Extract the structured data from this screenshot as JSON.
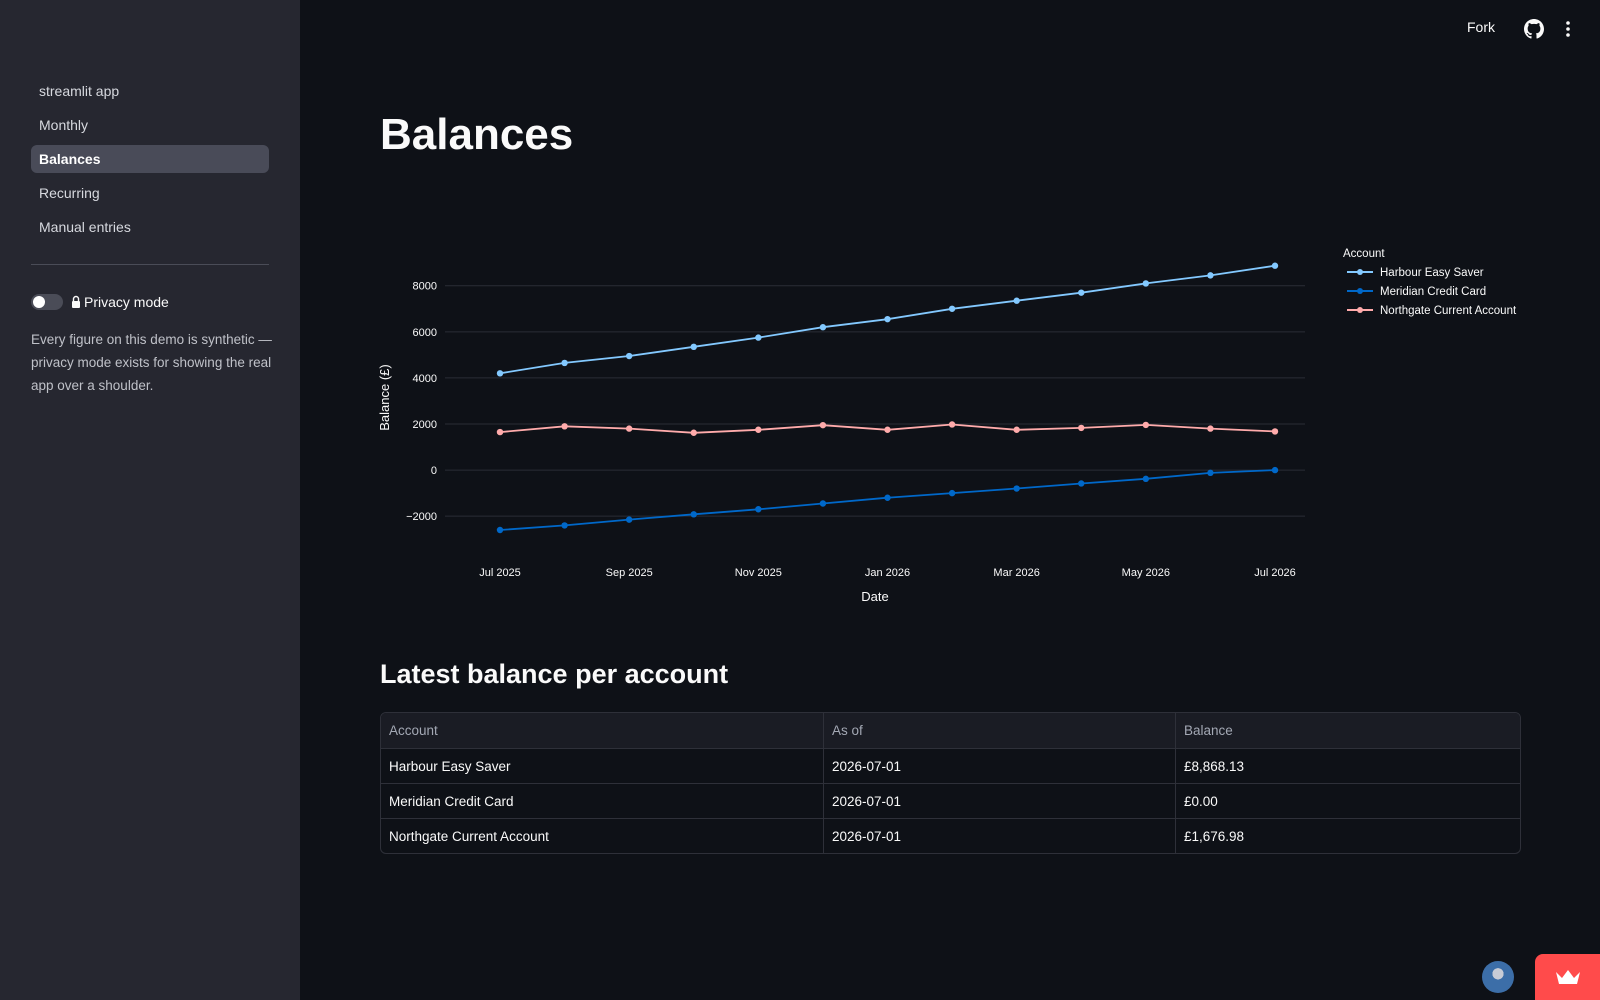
{
  "sidebar": {
    "items": [
      {
        "label": "streamlit app",
        "active": false
      },
      {
        "label": "Monthly",
        "active": false
      },
      {
        "label": "Balances",
        "active": true
      },
      {
        "label": "Recurring",
        "active": false
      },
      {
        "label": "Manual entries",
        "active": false
      }
    ],
    "privacy_label": "Privacy mode",
    "privacy_on": false,
    "note": "Every figure on this demo is synthetic — privacy mode exists for showing the real app over a shoulder."
  },
  "header": {
    "fork_label": "Fork"
  },
  "main": {
    "title": "Balances",
    "section_title": "Latest balance per account"
  },
  "chart_data": {
    "type": "line",
    "x": [
      "2025-07-01",
      "2025-08-01",
      "2025-09-01",
      "2025-10-01",
      "2025-11-01",
      "2025-12-01",
      "2026-01-01",
      "2026-02-01",
      "2026-03-01",
      "2026-04-01",
      "2026-05-01",
      "2026-06-01",
      "2026-07-01"
    ],
    "x_ticks": [
      "Jul 2025",
      "Sep 2025",
      "Nov 2025",
      "Jan 2026",
      "Mar 2026",
      "May 2026",
      "Jul 2026"
    ],
    "y_ticks": [
      8000,
      6000,
      4000,
      2000,
      0,
      -2000
    ],
    "y_tick_labels": [
      "8000",
      "6000",
      "4000",
      "2000",
      "0",
      "−2000"
    ],
    "ylim": [
      -2600,
      8900
    ],
    "xlabel": "Date",
    "ylabel": "Balance (£)",
    "legend_title": "Account",
    "legend_position": "right",
    "grid": true,
    "series": [
      {
        "name": "Harbour Easy Saver",
        "color": "#83c9ff",
        "values": [
          4200,
          4650,
          4950,
          5350,
          5750,
          6200,
          6550,
          7000,
          7350,
          7700,
          8100,
          8450,
          8868.13
        ]
      },
      {
        "name": "Meridian Credit Card",
        "color": "#0068c9",
        "values": [
          -2600,
          -2400,
          -2150,
          -1920,
          -1700,
          -1450,
          -1200,
          -1000,
          -800,
          -580,
          -380,
          -120,
          0
        ]
      },
      {
        "name": "Northgate Current Account",
        "color": "#ffabab",
        "values": [
          1650,
          1900,
          1800,
          1620,
          1750,
          1950,
          1750,
          1980,
          1750,
          1830,
          1960,
          1800,
          1676.98
        ]
      }
    ]
  },
  "table": {
    "columns": [
      "Account",
      "As of",
      "Balance"
    ],
    "rows": [
      [
        "Harbour Easy Saver",
        "2026-07-01",
        "£8,868.13"
      ],
      [
        "Meridian Credit Card",
        "2026-07-01",
        "£0.00"
      ],
      [
        "Northgate Current Account",
        "2026-07-01",
        "£1,676.98"
      ]
    ]
  },
  "colors": {
    "background": "#0e1117",
    "sidebar": "#262730",
    "accent": "#ff4b4b"
  }
}
